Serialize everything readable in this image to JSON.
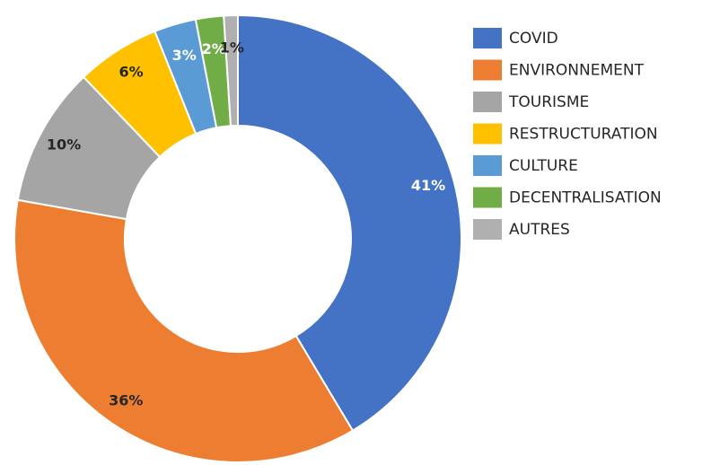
{
  "chart_data": {
    "type": "donut",
    "categories": [
      "COVID",
      "ENVIRONNEMENT",
      "TOURISME",
      "RESTRUCTURATION",
      "CULTURE",
      "DECENTRALISATION",
      "AUTRES"
    ],
    "values": [
      41,
      36,
      10,
      6,
      3,
      2,
      1
    ],
    "value_labels": [
      "41%",
      "36%",
      "10%",
      "6%",
      "3%",
      "2%",
      "1%"
    ],
    "colors": [
      "#4472c4",
      "#ed7d31",
      "#a5a5a5",
      "#ffc000",
      "#5b9bd5",
      "#70ad47",
      "#b0b0b0"
    ],
    "label_colors": [
      "#ffffff",
      "#262626",
      "#262626",
      "#262626",
      "#ffffff",
      "#ffffff",
      "#262626"
    ],
    "legend": "right"
  }
}
